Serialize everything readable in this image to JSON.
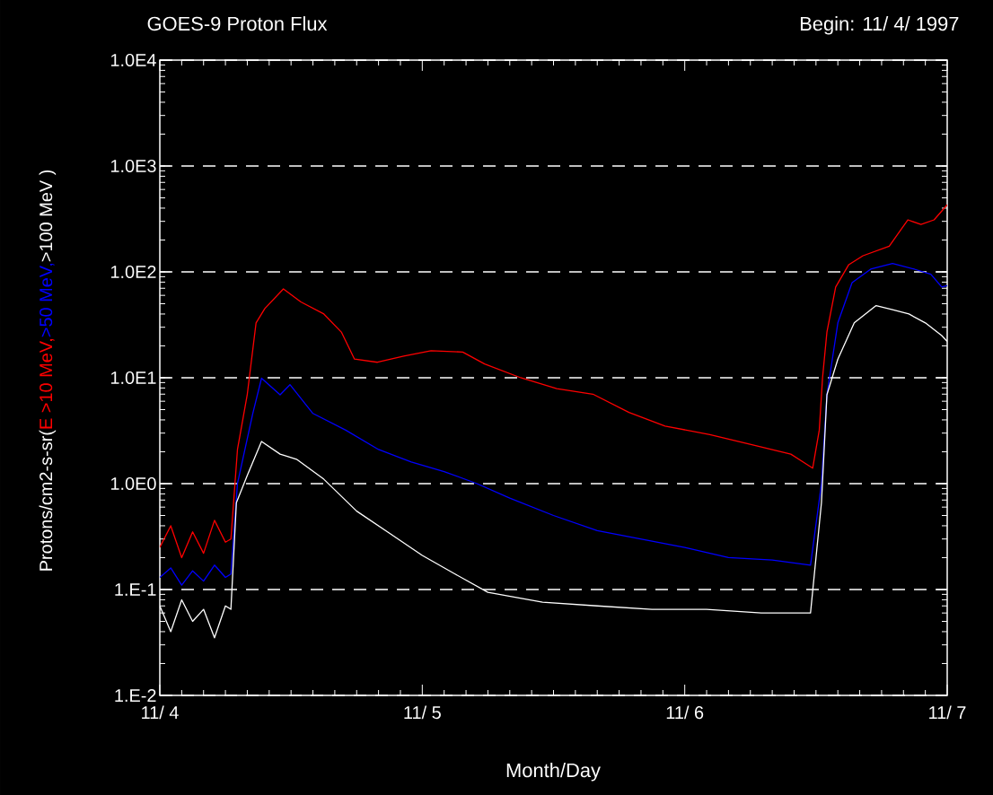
{
  "chart_data": {
    "type": "line",
    "title": "GOES-9 Proton Flux",
    "subtitle": "Begin: 11/ 4/ 1997",
    "xlabel": "Month/Day",
    "ylabel": "Protons/cm2-s-sr(",
    "log": "y",
    "grid": "y",
    "xlim": [
      "1997-11-04",
      "1997-11-07"
    ],
    "xticks": [
      {
        "value": "1997-11-04",
        "label": "11/ 4"
      },
      {
        "value": "1997-11-05",
        "label": "11/ 5"
      },
      {
        "value": "1997-11-06",
        "label": "11/ 6"
      },
      {
        "value": "1997-11-07",
        "label": "11/ 7"
      }
    ],
    "ylim": [
      0.01,
      10000
    ],
    "yticks": [
      {
        "value": 0.01,
        "label": "1.E-2"
      },
      {
        "value": 0.1,
        "label": "1.E-1"
      },
      {
        "value": 1,
        "label": "1.0E0"
      },
      {
        "value": 10,
        "label": "1.0E1"
      },
      {
        "value": 100,
        "label": "1.0E2"
      },
      {
        "value": 1000,
        "label": "1.0E3"
      },
      {
        "value": 10000,
        "label": "1.0E4"
      }
    ],
    "series": [
      {
        "name": "E >10 MeV,",
        "color": "#ff0000",
        "x": [
          "1997-11-04T00:00",
          "1997-11-04T01:00",
          "1997-11-04T02:00",
          "1997-11-04T03:00",
          "1997-11-04T04:00",
          "1997-11-04T05:00",
          "1997-11-04T06:00",
          "1997-11-04T06:30",
          "1997-11-04T07:06",
          "1997-11-04T08:00",
          "1997-11-04T08:48",
          "1997-11-04T09:36",
          "1997-11-04T11:18",
          "1997-11-04T12:54",
          "1997-11-04T15:00",
          "1997-11-04T16:36",
          "1997-11-04T17:48",
          "1997-11-04T19:54",
          "1997-11-04T22:18",
          "1997-11-05T00:48",
          "1997-11-05T03:42",
          "1997-11-05T05:42",
          "1997-11-05T09:00",
          "1997-11-05T12:18",
          "1997-11-05T15:36",
          "1997-11-05T18:54",
          "1997-11-05T22:12",
          "1997-11-06T02:18",
          "1997-11-06T06:24",
          "1997-11-06T09:42",
          "1997-11-06T11:42",
          "1997-11-06T12:18",
          "1997-11-06T12:36",
          "1997-11-06T13:00",
          "1997-11-06T13:48",
          "1997-11-06T15:00",
          "1997-11-06T16:18",
          "1997-11-06T18:42",
          "1997-11-06T20:24",
          "1997-11-06T21:36",
          "1997-11-06T22:48",
          "1997-11-07T00:00"
        ],
        "values": [
          0.25,
          0.4,
          0.2,
          0.35,
          0.22,
          0.45,
          0.28,
          0.3,
          2.1,
          7,
          33,
          45,
          69,
          52,
          40,
          27,
          15,
          14,
          16,
          18,
          17.5,
          13.5,
          10,
          7.9,
          7,
          4.7,
          3.5,
          2.9,
          2.3,
          1.9,
          1.4,
          3.2,
          10,
          27,
          72,
          117,
          142,
          175,
          310,
          280,
          310,
          430
        ]
      },
      {
        "name": ">50 MeV,",
        "color": "#0000ff",
        "x": [
          "1997-11-04T00:00",
          "1997-11-04T01:00",
          "1997-11-04T02:00",
          "1997-11-04T03:00",
          "1997-11-04T04:00",
          "1997-11-04T05:00",
          "1997-11-04T06:00",
          "1997-11-04T06:30",
          "1997-11-04T07:06",
          "1997-11-04T08:30",
          "1997-11-04T09:18",
          "1997-11-04T11:00",
          "1997-11-04T11:54",
          "1997-11-04T14:00",
          "1997-11-04T17:00",
          "1997-11-04T20:00",
          "1997-11-04T23:00",
          "1997-11-05T02:00",
          "1997-11-05T05:00",
          "1997-11-05T08:00",
          "1997-11-05T12:00",
          "1997-11-05T16:00",
          "1997-11-05T20:00",
          "1997-11-06T00:00",
          "1997-11-06T04:00",
          "1997-11-06T08:00",
          "1997-11-06T11:30",
          "1997-11-06T12:30",
          "1997-11-06T13:00",
          "1997-11-06T14:00",
          "1997-11-06T15:18",
          "1997-11-06T17:00",
          "1997-11-06T19:00",
          "1997-11-06T21:00",
          "1997-11-06T22:30",
          "1997-11-06T23:30",
          "1997-11-07T00:00"
        ],
        "values": [
          0.13,
          0.16,
          0.11,
          0.15,
          0.12,
          0.17,
          0.13,
          0.14,
          1,
          4.6,
          9.9,
          6.9,
          8.6,
          4.6,
          3.2,
          2.1,
          1.6,
          1.3,
          1,
          0.73,
          0.5,
          0.36,
          0.3,
          0.25,
          0.2,
          0.19,
          0.17,
          1,
          6.9,
          33,
          79,
          106,
          120,
          106,
          95,
          72,
          74
        ]
      },
      {
        "name": ">100 MeV )",
        "color": "#ffffff",
        "x": [
          "1997-11-04T00:00",
          "1997-11-04T01:00",
          "1997-11-04T02:00",
          "1997-11-04T03:00",
          "1997-11-04T04:00",
          "1997-11-04T05:00",
          "1997-11-04T06:00",
          "1997-11-04T06:30",
          "1997-11-04T07:00",
          "1997-11-04T08:00",
          "1997-11-04T09:18",
          "1997-11-04T11:00",
          "1997-11-04T12:30",
          "1997-11-04T15:00",
          "1997-11-04T18:00",
          "1997-11-04T21:00",
          "1997-11-05T00:00",
          "1997-11-05T03:00",
          "1997-11-05T06:00",
          "1997-11-05T11:00",
          "1997-11-05T16:00",
          "1997-11-05T21:00",
          "1997-11-06T02:00",
          "1997-11-06T07:00",
          "1997-11-06T11:30",
          "1997-11-06T12:30",
          "1997-11-06T13:00",
          "1997-11-06T14:00",
          "1997-11-06T15:30",
          "1997-11-06T17:30",
          "1997-11-06T19:00",
          "1997-11-06T20:30",
          "1997-11-06T22:00",
          "1997-11-06T23:30",
          "1997-11-07T00:00"
        ],
        "values": [
          0.07,
          0.04,
          0.08,
          0.05,
          0.065,
          0.035,
          0.07,
          0.065,
          0.66,
          1.2,
          2.5,
          1.9,
          1.7,
          1.1,
          0.55,
          0.34,
          0.21,
          0.14,
          0.094,
          0.076,
          0.07,
          0.065,
          0.065,
          0.06,
          0.06,
          0.66,
          6.9,
          15,
          33,
          48,
          44,
          40,
          33,
          25,
          22
        ]
      }
    ]
  }
}
